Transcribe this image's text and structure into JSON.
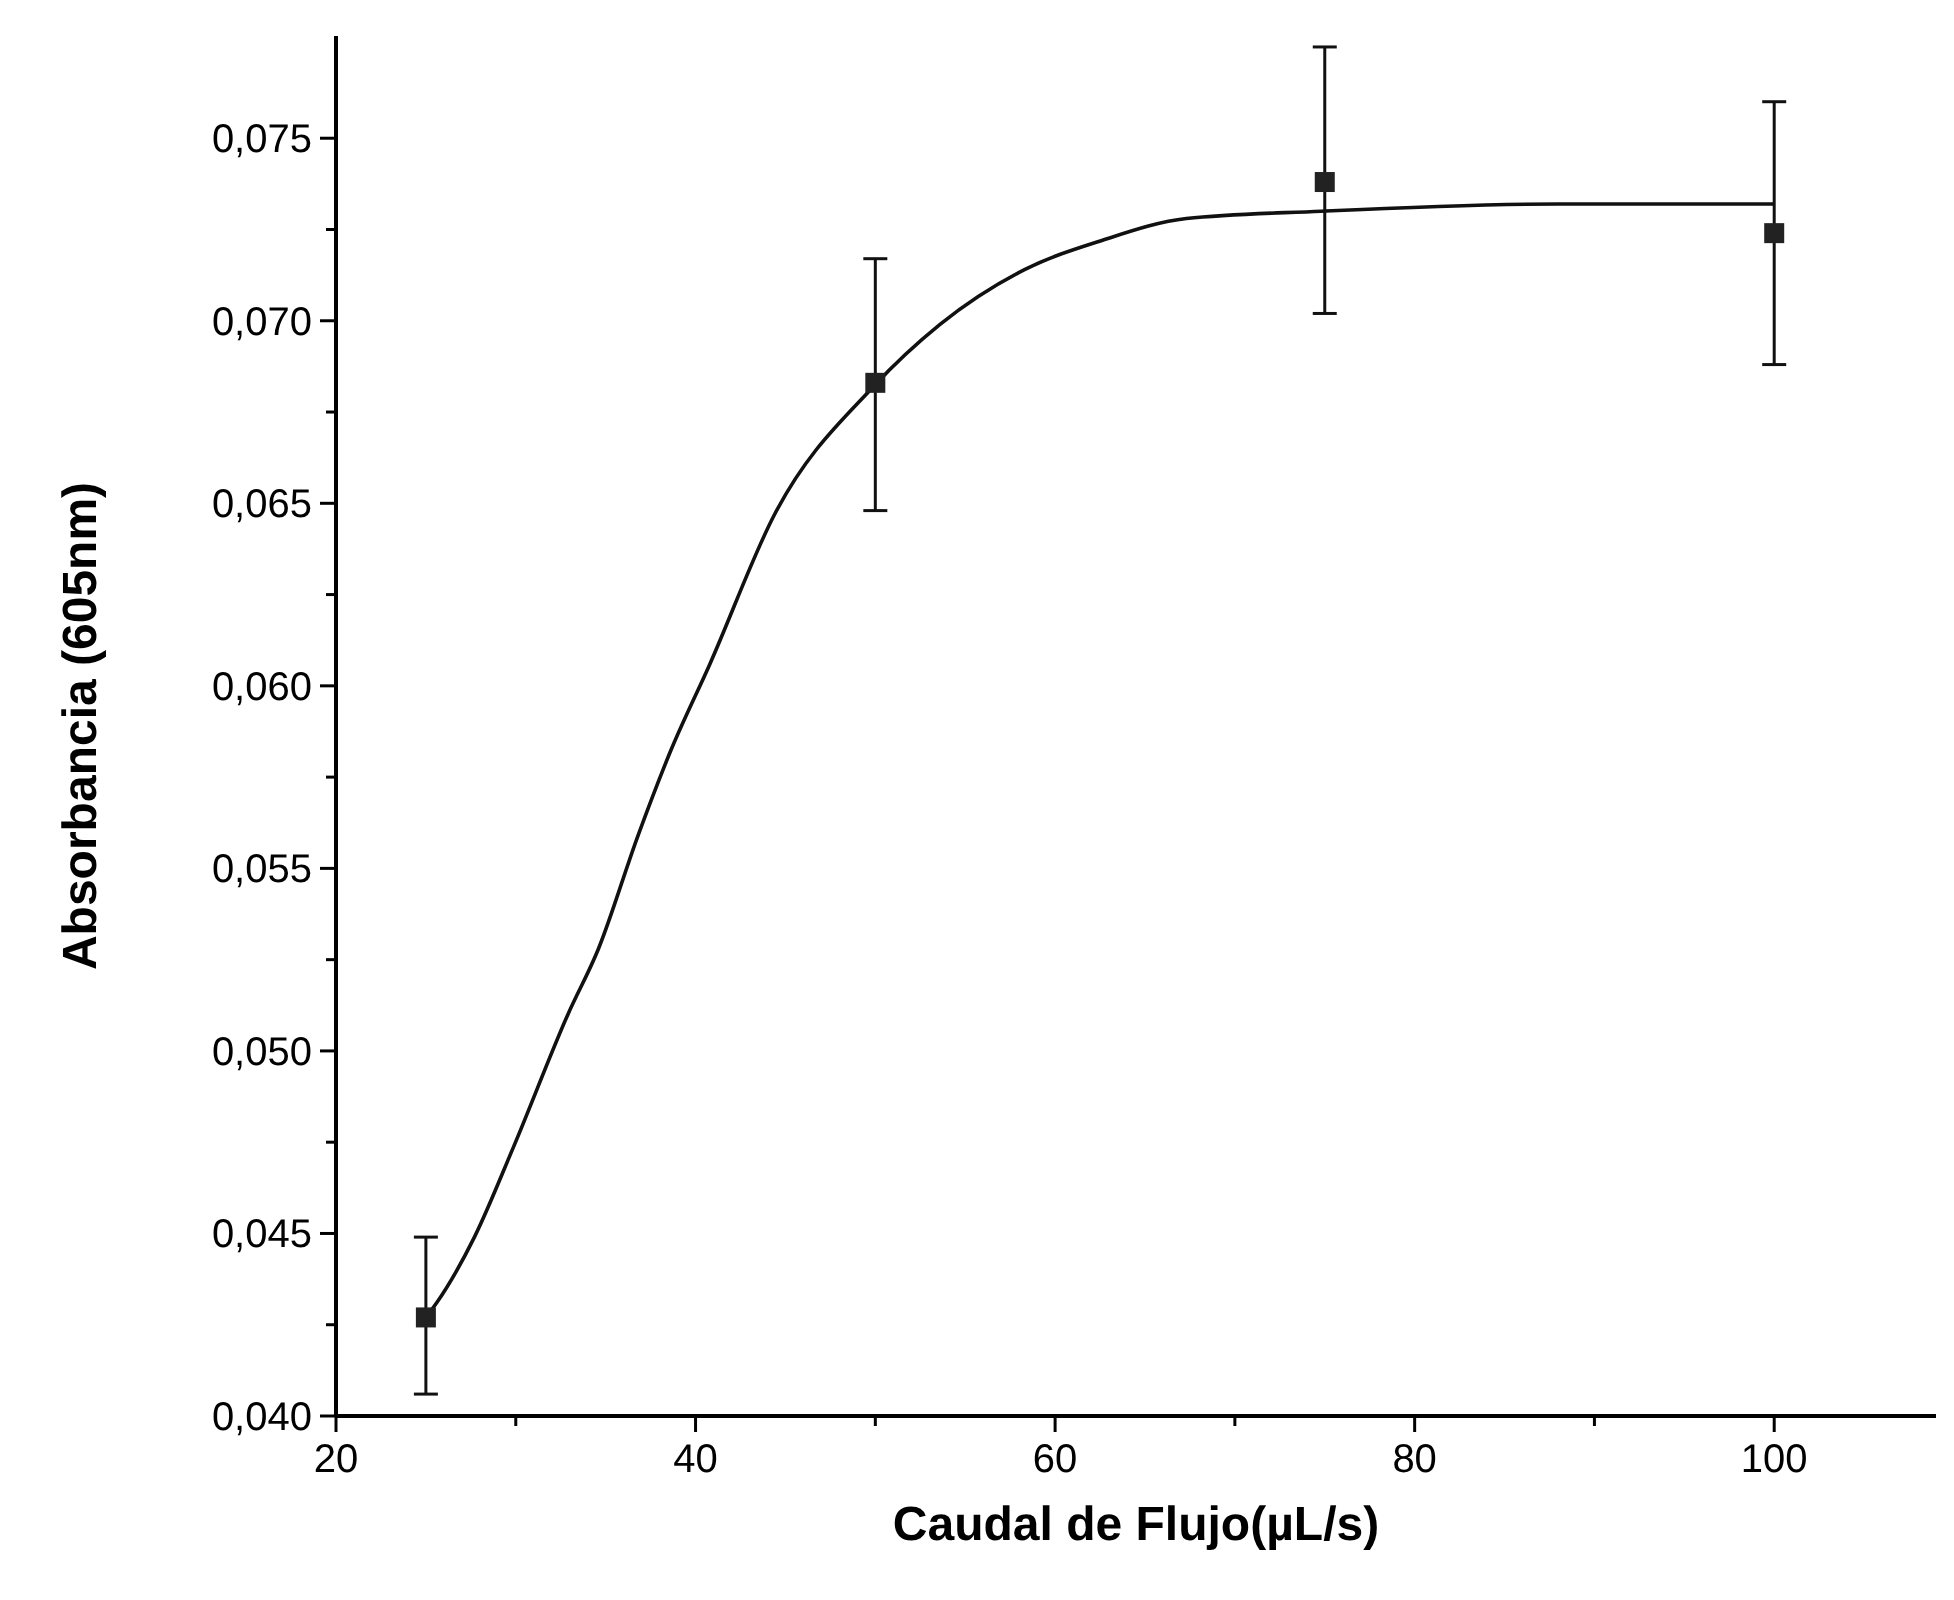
{
  "chart_data": {
    "type": "scatter",
    "xlabel": "Caudal de Flujo(µL/s)",
    "ylabel": "Absorbancia (605nm)",
    "xlim": [
      20,
      109
    ],
    "ylim": [
      0.04,
      0.0778
    ],
    "xticks": [
      20,
      {
        "value": 30,
        "label": null
      },
      40,
      {
        "value": 50,
        "label": null
      },
      60,
      {
        "value": 70,
        "label": null
      },
      80,
      {
        "value": 90,
        "label": null
      },
      100
    ],
    "yticks": [
      {
        "value": 0.04,
        "label": "0,040"
      },
      {
        "value": 0.0425,
        "label": null
      },
      {
        "value": 0.045,
        "label": "0,045"
      },
      {
        "value": 0.0475,
        "label": null
      },
      {
        "value": 0.05,
        "label": "0,050"
      },
      {
        "value": 0.0525,
        "label": null
      },
      {
        "value": 0.055,
        "label": "0,055"
      },
      {
        "value": 0.0575,
        "label": null
      },
      {
        "value": 0.06,
        "label": "0,060"
      },
      {
        "value": 0.0625,
        "label": null
      },
      {
        "value": 0.065,
        "label": "0,065"
      },
      {
        "value": 0.0675,
        "label": null
      },
      {
        "value": 0.07,
        "label": "0,070"
      },
      {
        "value": 0.0725,
        "label": null
      },
      {
        "value": 0.075,
        "label": "0,075"
      }
    ],
    "grid": false,
    "series": [
      {
        "type": "line",
        "color": "#111111",
        "marker": "none",
        "line_style": "solid",
        "x": [
          25,
          25.6,
          27.7,
          29.9,
          32.9,
          34.6,
          36.8,
          38.6,
          40.8,
          44.4,
          49.9,
          53.6,
          58.3,
          62.6,
          67.3,
          74.8,
          88,
          100
        ],
        "values": [
          0.0427,
          0.0431,
          0.0449,
          0.0474,
          0.051,
          0.0528,
          0.0559,
          0.0582,
          0.0606,
          0.0647,
          0.0682,
          0.0699,
          0.0714,
          0.0722,
          0.0728,
          0.073,
          0.0732,
          0.0732
        ]
      },
      {
        "color": "#222222",
        "marker": "square",
        "x": [
          25,
          50,
          75,
          100
        ],
        "values": [
          0.0427,
          0.0683,
          0.0738,
          0.0724
        ],
        "errors": [
          [
            0.0406,
            0.0449
          ],
          [
            0.0648,
            0.0717
          ],
          [
            0.0702,
            0.0775
          ],
          [
            0.0688,
            0.076
          ]
        ]
      }
    ]
  }
}
